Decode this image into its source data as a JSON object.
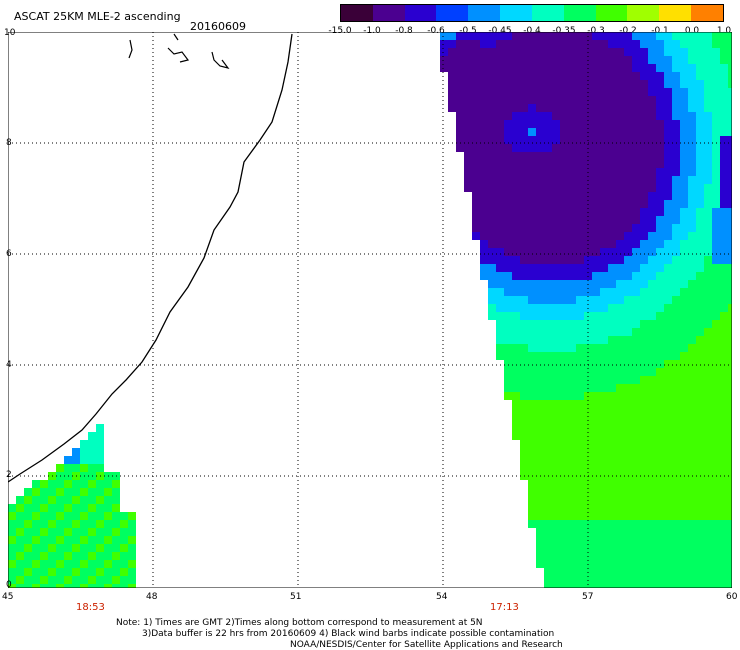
{
  "header": {
    "title": "ASCAT 25KM MLE-2 ascending",
    "date": "20160609"
  },
  "colorbar": {
    "labels": [
      "-15.0",
      "-1.0",
      "-0.8",
      "-0.6",
      "-0.5",
      "-0.45",
      "-0.4",
      "-0.35",
      "-0.3",
      "-0.2",
      "-0.1",
      "0.0",
      "1.0"
    ],
    "colors": [
      "#3a0038",
      "#4b0090",
      "#2a00d0",
      "#0040ff",
      "#0090ff",
      "#00d8ff",
      "#00ffc0",
      "#00ff60",
      "#40ff00",
      "#a0ff00",
      "#ffe000",
      "#ff8000",
      "#ff2000"
    ]
  },
  "axes": {
    "x_ticks": [
      "45",
      "48",
      "51",
      "54",
      "57",
      "60"
    ],
    "y_ticks": [
      "0",
      "2",
      "4",
      "6",
      "8",
      "10"
    ]
  },
  "pass_times": [
    "18:53",
    "17:13"
  ],
  "notes": {
    "line1": "Note: 1) Times are GMT 2)Times along bottom correspond to measurement at 5N",
    "line2": "3)Data buffer is 22 hrs from 20160609 4) Black wind barbs indicate possible contamination",
    "line3": "NOAA/NESDIS/Center for Satellite Applications and Research"
  }
}
